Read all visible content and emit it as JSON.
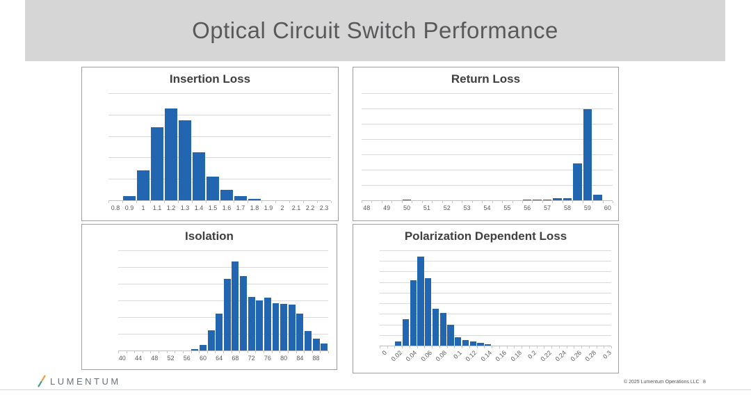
{
  "slide": {
    "title": "Optical Circuit Switch Performance",
    "footer": {
      "brand": "LUMENTUM",
      "copyright": "© 2025 Lumentum Operations LLC",
      "page_number": "8"
    },
    "icons": {
      "logo_mark": "lumentum-slash-icon"
    },
    "colors": {
      "banner_bg": "#D6D6D6",
      "banner_text": "#58595B",
      "bar_blue": "#2265B0",
      "chart_title": "#404040",
      "axis_label": "#595959",
      "gridline": "#D9D9D9",
      "axis_line": "#BFBFBF",
      "panel_border": "#9E9E9E",
      "logo_orange": "#EE9E3F",
      "logo_teal": "#43A08B",
      "brand_text": "#6B7177"
    }
  },
  "chart_data": [
    {
      "id": "insertion_loss",
      "type": "bar",
      "title": "Insertion Loss",
      "categories": [
        "0.8",
        "0.9",
        "1",
        "1.1",
        "1.2",
        "1.3",
        "1.4",
        "1.5",
        "1.6",
        "1.7",
        "1.8",
        "1.9",
        "2",
        "2.1",
        "2.2",
        "2.3"
      ],
      "values": [
        0,
        2,
        14,
        34,
        43,
        37.5,
        22.5,
        11,
        5,
        2,
        0.7,
        0,
        0,
        0,
        0,
        0
      ],
      "x_tick_labels": [
        "0.8",
        "0.9",
        "1",
        "1.1",
        "1.2",
        "1.3",
        "1.4",
        "1.5",
        "1.6",
        "1.7",
        "1.8",
        "1.9",
        "2",
        "2.1",
        "2.2",
        "2.3"
      ],
      "label_every": 1,
      "rotate_labels": false,
      "ylim": [
        0,
        50
      ],
      "grid_step": 10,
      "grid": "horizontal",
      "legend": "none",
      "xlabel": "",
      "ylabel": ""
    },
    {
      "id": "return_loss",
      "type": "bar",
      "title": "Return Loss",
      "categories": [
        "48",
        "48.5",
        "49",
        "49.5",
        "50",
        "50.5",
        "51",
        "51.5",
        "52",
        "52.5",
        "53",
        "53.5",
        "54",
        "54.5",
        "55",
        "55.5",
        "56",
        "56.5",
        "57",
        "57.5",
        "58",
        "58.5",
        "59",
        "59.5",
        "60"
      ],
      "values": [
        0,
        0,
        0,
        0,
        0.4,
        0,
        0,
        0,
        0,
        0,
        0,
        0,
        0,
        0,
        0,
        0,
        0.6,
        0.6,
        0.4,
        1.2,
        1.2,
        24,
        59.5,
        3.5,
        0
      ],
      "x_tick_labels": [
        "48",
        "49",
        "50",
        "51",
        "52",
        "53",
        "54",
        "55",
        "56",
        "57",
        "58",
        "59",
        "60"
      ],
      "label_every": 2,
      "rotate_labels": false,
      "ylim": [
        0,
        70
      ],
      "grid_step": 10,
      "grid": "horizontal",
      "legend": "none",
      "xlabel": "",
      "ylabel": ""
    },
    {
      "id": "isolation",
      "type": "bar",
      "title": "Isolation",
      "categories": [
        "40",
        "42",
        "44",
        "46",
        "48",
        "50",
        "52",
        "54",
        "56",
        "58",
        "60",
        "62",
        "64",
        "66",
        "68",
        "70",
        "72",
        "74",
        "76",
        "78",
        "80",
        "82",
        "84",
        "86",
        "88",
        "90"
      ],
      "values": [
        0,
        0,
        0,
        0,
        0,
        0,
        0,
        0,
        0,
        1,
        3.5,
        12,
        22,
        43,
        53.5,
        44.5,
        32,
        30,
        31.5,
        28.5,
        28,
        27.5,
        22,
        11.5,
        7,
        4
      ],
      "x_tick_labels": [
        "40",
        "44",
        "48",
        "52",
        "56",
        "60",
        "64",
        "68",
        "72",
        "76",
        "80",
        "84",
        "88"
      ],
      "label_every": 2,
      "rotate_labels": false,
      "ylim": [
        0,
        60
      ],
      "grid_step": 10,
      "grid": "horizontal",
      "legend": "none",
      "xlabel": "",
      "ylabel": ""
    },
    {
      "id": "polarization_dependent_loss",
      "type": "bar",
      "title": "Polarization Dependent Loss",
      "categories": [
        "0",
        "0.01",
        "0.02",
        "0.03",
        "0.04",
        "0.05",
        "0.06",
        "0.07",
        "0.08",
        "0.09",
        "0.1",
        "0.11",
        "0.12",
        "0.13",
        "0.14",
        "0.15",
        "0.16",
        "0.17",
        "0.18",
        "0.19",
        "0.2",
        "0.21",
        "0.22",
        "0.23",
        "0.24",
        "0.25",
        "0.26",
        "0.27",
        "0.28",
        "0.29",
        "0.3"
      ],
      "values": [
        0,
        0,
        2,
        12.5,
        31,
        42,
        32,
        17.5,
        15.5,
        10,
        4,
        2.5,
        2,
        1.2,
        0.7,
        0,
        0,
        0,
        0,
        0,
        0,
        0,
        0,
        0,
        0,
        0,
        0,
        0,
        0,
        0,
        0
      ],
      "x_tick_labels": [
        "0",
        "0.02",
        "0.04",
        "0.06",
        "0.08",
        "0.1",
        "0.12",
        "0.14",
        "0.16",
        "0.18",
        "0.2",
        "0.22",
        "0.24",
        "0.26",
        "0.28",
        "0.3"
      ],
      "label_every": 2,
      "rotate_labels": true,
      "ylim": [
        0,
        45
      ],
      "grid_step": 5,
      "grid": "horizontal",
      "legend": "none",
      "xlabel": "",
      "ylabel": ""
    }
  ]
}
